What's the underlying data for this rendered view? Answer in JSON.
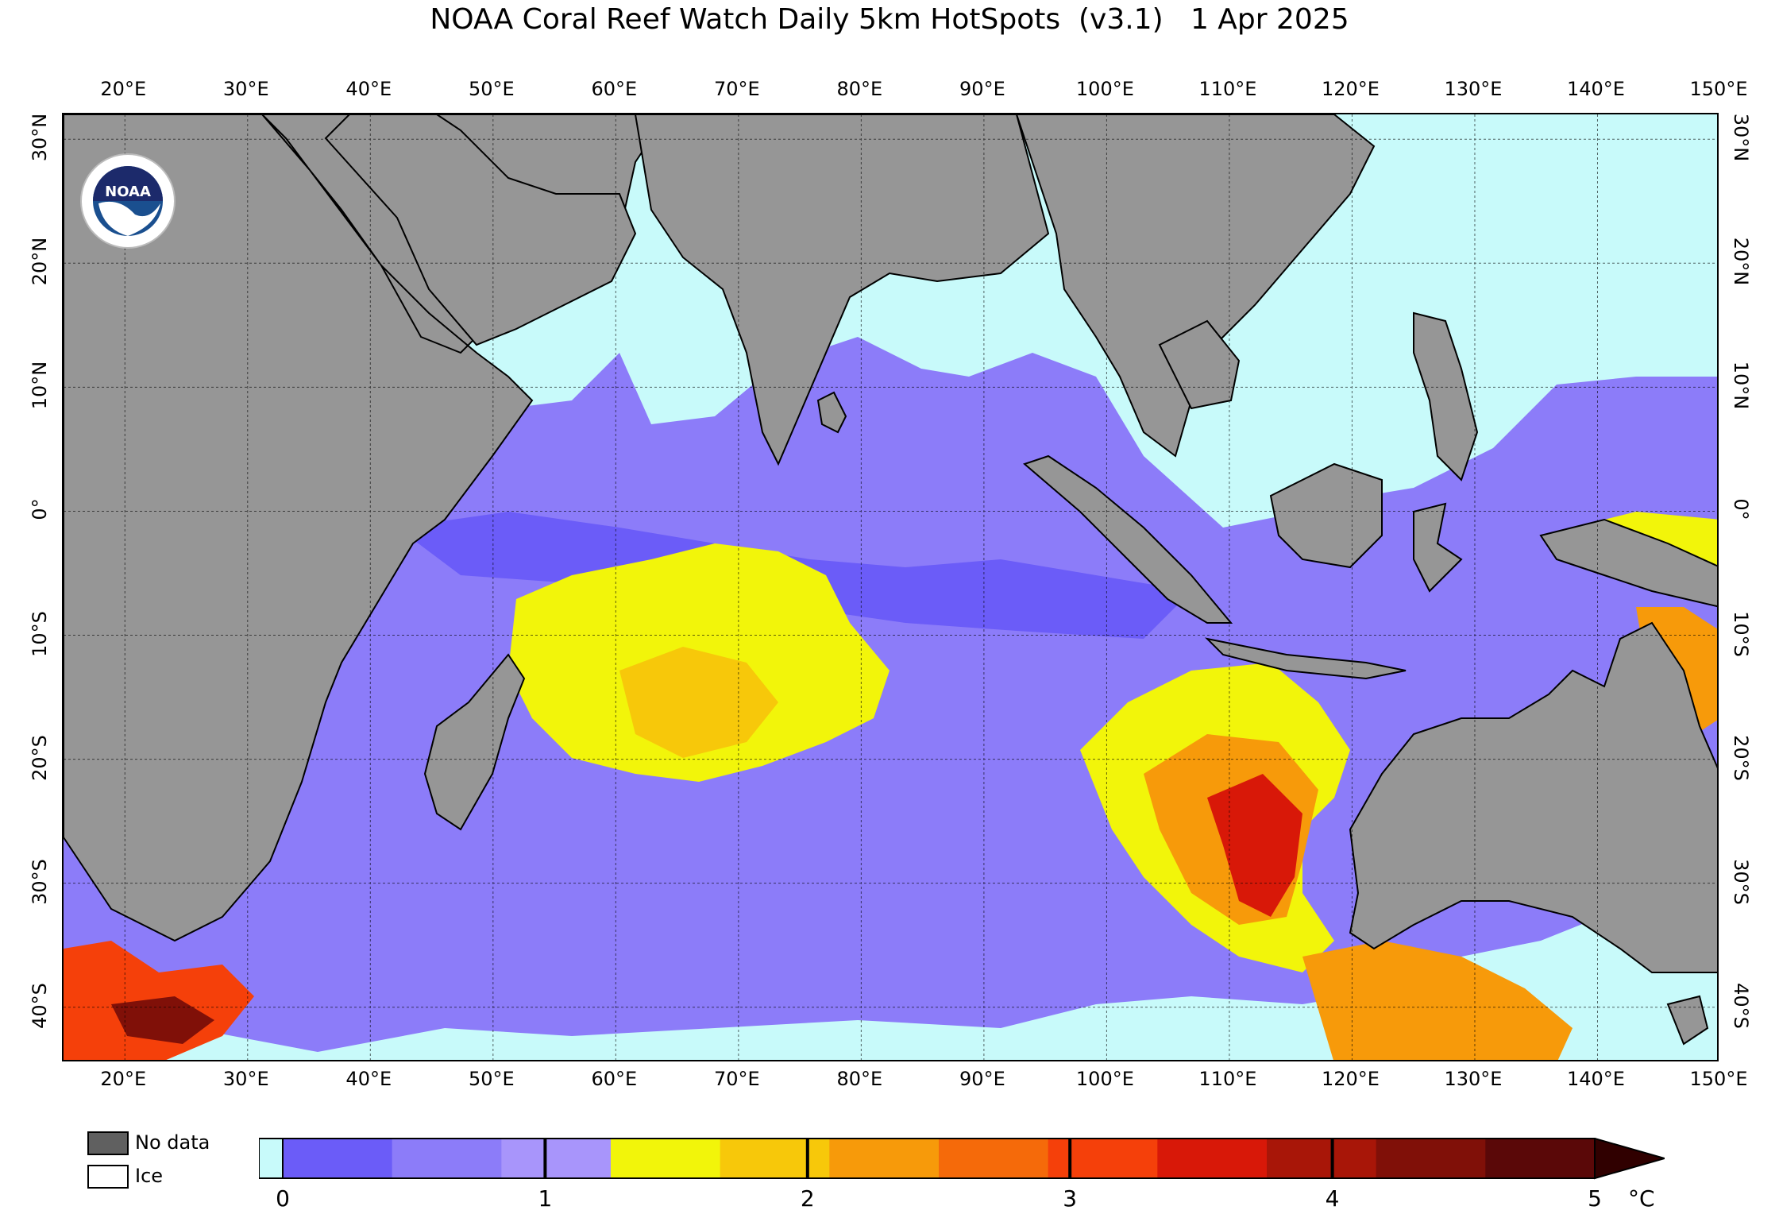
{
  "title": "NOAA Coral Reef Watch Daily 5km HotSpots  (v3.1)   1 Apr 2025",
  "map": {
    "lon_labels": [
      "20°E",
      "30°E",
      "40°E",
      "50°E",
      "60°E",
      "70°E",
      "80°E",
      "90°E",
      "100°E",
      "110°E",
      "120°E",
      "130°E",
      "140°E",
      "150°E"
    ],
    "lat_labels": [
      "30°N",
      "20°N",
      "10°N",
      "0°",
      "10°S",
      "20°S",
      "30°S",
      "40°S"
    ],
    "extent": {
      "lon": [
        15,
        150
      ],
      "lat": [
        -44.5,
        32
      ]
    },
    "colors": {
      "land": "#969696",
      "no_hotspot": "#c8fafa",
      "coast": "#000000"
    }
  },
  "legend": {
    "no_data_label": "No data",
    "ice_label": "Ice",
    "no_data_color": "#606060",
    "ice_color": "#ffffff"
  },
  "colorbar": {
    "ticks": [
      "0",
      "1",
      "2",
      "3",
      "4",
      "5"
    ],
    "unit": "°C",
    "bands": [
      "#6b5cf8",
      "#8c7cf9",
      "#a895fb",
      "#f2f50a",
      "#f7c80a",
      "#f79a0a",
      "#f56a0a",
      "#f5400a",
      "#d81808",
      "#a81608",
      "#801008",
      "#5a0808"
    ]
  },
  "logo": {
    "text": "NOAA"
  }
}
